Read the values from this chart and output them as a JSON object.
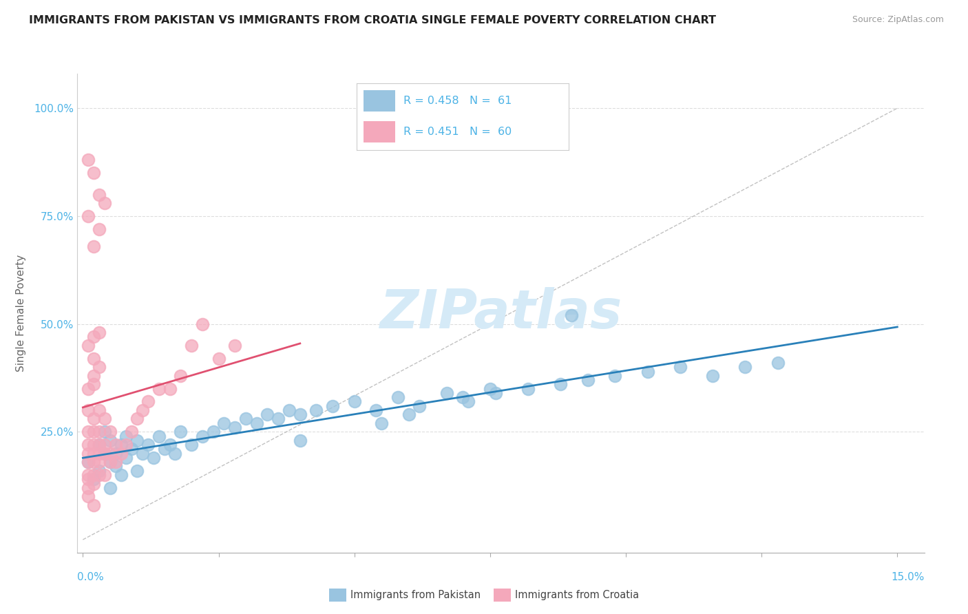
{
  "title": "IMMIGRANTS FROM PAKISTAN VS IMMIGRANTS FROM CROATIA SINGLE FEMALE POVERTY CORRELATION CHART",
  "source": "Source: ZipAtlas.com",
  "ylabel": "Single Female Poverty",
  "x_left_label": "0.0%",
  "x_right_label": "15.0%",
  "y_ticks": [
    0.0,
    0.25,
    0.5,
    0.75,
    1.0
  ],
  "y_tick_labels": [
    "",
    "25.0%",
    "50.0%",
    "75.0%",
    "100.0%"
  ],
  "legend_r1": "R = 0.458",
  "legend_n1": "N =  61",
  "legend_r2": "R = 0.451",
  "legend_n2": "N =  60",
  "legend_label1": "Immigrants from Pakistan",
  "legend_label2": "Immigrants from Croatia",
  "blue_scatter": "#99c4e0",
  "pink_scatter": "#f4a8bb",
  "blue_line": "#2980b9",
  "pink_line": "#e05070",
  "gray_dash": "#bbbbbb",
  "tick_label_color": "#4db3e6",
  "title_color": "#222222",
  "source_color": "#999999",
  "ylabel_color": "#666666",
  "watermark_color": "#d5eaf7",
  "pak_x": [
    0.001,
    0.002,
    0.003,
    0.003,
    0.004,
    0.004,
    0.005,
    0.005,
    0.005,
    0.006,
    0.006,
    0.007,
    0.007,
    0.008,
    0.008,
    0.009,
    0.01,
    0.01,
    0.011,
    0.012,
    0.013,
    0.014,
    0.015,
    0.016,
    0.017,
    0.018,
    0.02,
    0.022,
    0.024,
    0.026,
    0.028,
    0.03,
    0.032,
    0.034,
    0.036,
    0.038,
    0.04,
    0.043,
    0.046,
    0.05,
    0.054,
    0.058,
    0.062,
    0.067,
    0.071,
    0.076,
    0.082,
    0.088,
    0.093,
    0.098,
    0.104,
    0.11,
    0.116,
    0.122,
    0.128,
    0.09,
    0.06,
    0.075,
    0.04,
    0.055,
    0.07
  ],
  "pak_y": [
    0.18,
    0.14,
    0.22,
    0.16,
    0.2,
    0.25,
    0.18,
    0.23,
    0.12,
    0.2,
    0.17,
    0.22,
    0.15,
    0.24,
    0.19,
    0.21,
    0.16,
    0.23,
    0.2,
    0.22,
    0.19,
    0.24,
    0.21,
    0.22,
    0.2,
    0.25,
    0.22,
    0.24,
    0.25,
    0.27,
    0.26,
    0.28,
    0.27,
    0.29,
    0.28,
    0.3,
    0.29,
    0.3,
    0.31,
    0.32,
    0.3,
    0.33,
    0.31,
    0.34,
    0.32,
    0.34,
    0.35,
    0.36,
    0.37,
    0.38,
    0.39,
    0.4,
    0.38,
    0.4,
    0.41,
    0.52,
    0.29,
    0.35,
    0.23,
    0.27,
    0.33
  ],
  "cro_x": [
    0.001,
    0.001,
    0.001,
    0.001,
    0.001,
    0.001,
    0.001,
    0.001,
    0.001,
    0.002,
    0.002,
    0.002,
    0.002,
    0.002,
    0.002,
    0.002,
    0.002,
    0.003,
    0.003,
    0.003,
    0.003,
    0.003,
    0.003,
    0.004,
    0.004,
    0.004,
    0.004,
    0.005,
    0.005,
    0.005,
    0.006,
    0.006,
    0.007,
    0.008,
    0.009,
    0.01,
    0.011,
    0.012,
    0.014,
    0.016,
    0.018,
    0.02,
    0.022,
    0.025,
    0.028,
    0.001,
    0.002,
    0.003,
    0.004,
    0.002,
    0.001,
    0.003,
    0.002,
    0.001,
    0.003,
    0.002,
    0.001,
    0.002,
    0.003,
    0.002
  ],
  "cro_y": [
    0.2,
    0.15,
    0.22,
    0.18,
    0.14,
    0.25,
    0.1,
    0.3,
    0.12,
    0.2,
    0.25,
    0.15,
    0.18,
    0.22,
    0.08,
    0.28,
    0.13,
    0.2,
    0.22,
    0.15,
    0.25,
    0.18,
    0.3,
    0.2,
    0.22,
    0.15,
    0.28,
    0.2,
    0.18,
    0.25,
    0.22,
    0.18,
    0.2,
    0.22,
    0.25,
    0.28,
    0.3,
    0.32,
    0.35,
    0.35,
    0.38,
    0.45,
    0.5,
    0.42,
    0.45,
    0.88,
    0.85,
    0.8,
    0.78,
    0.47,
    0.75,
    0.72,
    0.68,
    0.45,
    0.4,
    0.38,
    0.35,
    0.42,
    0.48,
    0.36
  ]
}
